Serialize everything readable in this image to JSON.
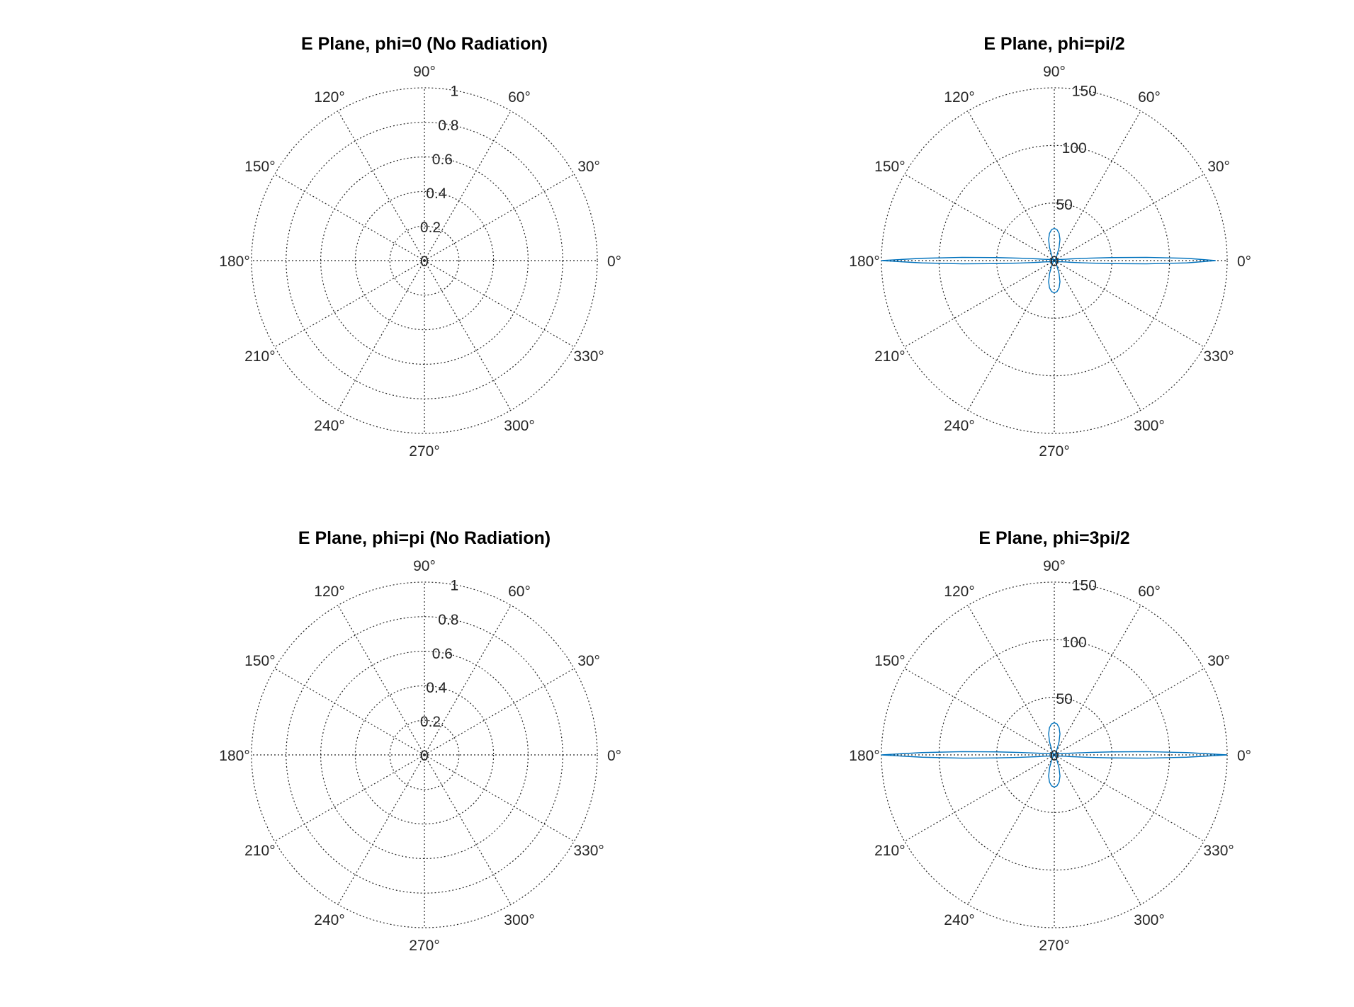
{
  "figure": {
    "background": "#ffffff",
    "line_color": "#0072BD",
    "grid_color": "#262626"
  },
  "chart_data": [
    {
      "type": "polar",
      "title": "E Plane, phi=0 (No Radiation)",
      "theta_ticks_deg": [
        0,
        30,
        60,
        90,
        120,
        150,
        180,
        210,
        240,
        270,
        300,
        330
      ],
      "theta_tick_labels": [
        "0°",
        "30°",
        "60°",
        "90°",
        "120°",
        "150°",
        "180°",
        "210°",
        "240°",
        "270°",
        "300°",
        "330°"
      ],
      "r_ticks": [
        0,
        0.2,
        0.4,
        0.6,
        0.8,
        1
      ],
      "r_tick_labels": [
        "0",
        "0.2",
        "0.4",
        "0.6",
        "0.8",
        "1"
      ],
      "rlim": [
        0,
        1
      ],
      "grid": true,
      "series": [
        {
          "points": [
            [
              0,
              0
            ]
          ]
        }
      ]
    },
    {
      "type": "polar",
      "title": "E Plane, phi=pi/2",
      "theta_ticks_deg": [
        0,
        30,
        60,
        90,
        120,
        150,
        180,
        210,
        240,
        270,
        300,
        330
      ],
      "theta_tick_labels": [
        "0°",
        "30°",
        "60°",
        "90°",
        "120°",
        "150°",
        "180°",
        "210°",
        "240°",
        "270°",
        "300°",
        "330°"
      ],
      "r_ticks": [
        0,
        50,
        100,
        150
      ],
      "r_tick_labels": [
        "0",
        "50",
        "100",
        "150"
      ],
      "rlim": [
        0,
        150
      ],
      "grid": true,
      "series": [
        {
          "points": [
            [
              0,
              140
            ],
            [
              1,
              115
            ],
            [
              2,
              80
            ],
            [
              3,
              50
            ],
            [
              4,
              30
            ],
            [
              5,
              20
            ],
            [
              6,
              14
            ],
            [
              7,
              10
            ],
            [
              10,
              6
            ],
            [
              20,
              3
            ],
            [
              45,
              1
            ],
            [
              60,
              4
            ],
            [
              70,
              12
            ],
            [
              75,
              19
            ],
            [
              80,
              24
            ],
            [
              85,
              27
            ],
            [
              90,
              28
            ],
            [
              95,
              27
            ],
            [
              100,
              24
            ],
            [
              105,
              19
            ],
            [
              110,
              12
            ],
            [
              120,
              4
            ],
            [
              135,
              1
            ],
            [
              160,
              3
            ],
            [
              170,
              6
            ],
            [
              173,
              10
            ],
            [
              174,
              14
            ],
            [
              175,
              20
            ],
            [
              176,
              30
            ],
            [
              177,
              50
            ],
            [
              178,
              80
            ],
            [
              179,
              115
            ],
            [
              180,
              150
            ],
            [
              181,
              115
            ],
            [
              182,
              80
            ],
            [
              183,
              50
            ],
            [
              184,
              30
            ],
            [
              185,
              20
            ],
            [
              186,
              14
            ],
            [
              187,
              10
            ],
            [
              190,
              6
            ],
            [
              200,
              3
            ],
            [
              225,
              1
            ],
            [
              240,
              4
            ],
            [
              250,
              12
            ],
            [
              255,
              19
            ],
            [
              260,
              24
            ],
            [
              265,
              27
            ],
            [
              270,
              28
            ],
            [
              275,
              27
            ],
            [
              280,
              24
            ],
            [
              285,
              19
            ],
            [
              290,
              12
            ],
            [
              300,
              4
            ],
            [
              315,
              1
            ],
            [
              340,
              3
            ],
            [
              350,
              6
            ],
            [
              353,
              10
            ],
            [
              354,
              14
            ],
            [
              355,
              20
            ],
            [
              356,
              30
            ],
            [
              357,
              50
            ],
            [
              358,
              80
            ],
            [
              359,
              115
            ],
            [
              360,
              140
            ]
          ]
        }
      ]
    },
    {
      "type": "polar",
      "title": "E Plane, phi=pi (No Radiation)",
      "theta_ticks_deg": [
        0,
        30,
        60,
        90,
        120,
        150,
        180,
        210,
        240,
        270,
        300,
        330
      ],
      "theta_tick_labels": [
        "0°",
        "30°",
        "60°",
        "90°",
        "120°",
        "150°",
        "180°",
        "210°",
        "240°",
        "270°",
        "300°",
        "330°"
      ],
      "r_ticks": [
        0,
        0.2,
        0.4,
        0.6,
        0.8,
        1
      ],
      "r_tick_labels": [
        "0",
        "0.2",
        "0.4",
        "0.6",
        "0.8",
        "1"
      ],
      "rlim": [
        0,
        1
      ],
      "grid": true,
      "series": [
        {
          "points": [
            [
              0,
              0
            ]
          ]
        }
      ]
    },
    {
      "type": "polar",
      "title": "E Plane, phi=3pi/2",
      "theta_ticks_deg": [
        0,
        30,
        60,
        90,
        120,
        150,
        180,
        210,
        240,
        270,
        300,
        330
      ],
      "theta_tick_labels": [
        "0°",
        "30°",
        "60°",
        "90°",
        "120°",
        "150°",
        "180°",
        "210°",
        "240°",
        "270°",
        "300°",
        "330°"
      ],
      "r_ticks": [
        0,
        50,
        100,
        150
      ],
      "r_tick_labels": [
        "0",
        "50",
        "100",
        "150"
      ],
      "rlim": [
        0,
        150
      ],
      "grid": true,
      "series": [
        {
          "points": [
            [
              0,
              150
            ],
            [
              1,
              115
            ],
            [
              2,
              80
            ],
            [
              3,
              50
            ],
            [
              4,
              30
            ],
            [
              5,
              20
            ],
            [
              6,
              14
            ],
            [
              7,
              10
            ],
            [
              10,
              6
            ],
            [
              20,
              3
            ],
            [
              45,
              1
            ],
            [
              60,
              4
            ],
            [
              70,
              12
            ],
            [
              75,
              19
            ],
            [
              80,
              24
            ],
            [
              85,
              27
            ],
            [
              90,
              28
            ],
            [
              95,
              27
            ],
            [
              100,
              24
            ],
            [
              105,
              19
            ],
            [
              110,
              12
            ],
            [
              120,
              4
            ],
            [
              135,
              1
            ],
            [
              160,
              3
            ],
            [
              170,
              6
            ],
            [
              173,
              10
            ],
            [
              174,
              14
            ],
            [
              175,
              20
            ],
            [
              176,
              30
            ],
            [
              177,
              50
            ],
            [
              178,
              80
            ],
            [
              179,
              115
            ],
            [
              180,
              150
            ],
            [
              181,
              115
            ],
            [
              182,
              80
            ],
            [
              183,
              50
            ],
            [
              184,
              30
            ],
            [
              185,
              20
            ],
            [
              186,
              14
            ],
            [
              187,
              10
            ],
            [
              190,
              6
            ],
            [
              200,
              3
            ],
            [
              225,
              1
            ],
            [
              240,
              4
            ],
            [
              250,
              12
            ],
            [
              255,
              19
            ],
            [
              260,
              24
            ],
            [
              265,
              27
            ],
            [
              270,
              28
            ],
            [
              275,
              27
            ],
            [
              280,
              24
            ],
            [
              285,
              19
            ],
            [
              290,
              12
            ],
            [
              300,
              4
            ],
            [
              315,
              1
            ],
            [
              340,
              3
            ],
            [
              350,
              6
            ],
            [
              353,
              10
            ],
            [
              354,
              14
            ],
            [
              355,
              20
            ],
            [
              356,
              30
            ],
            [
              357,
              50
            ],
            [
              358,
              80
            ],
            [
              359,
              115
            ],
            [
              360,
              150
            ]
          ]
        }
      ]
    }
  ]
}
